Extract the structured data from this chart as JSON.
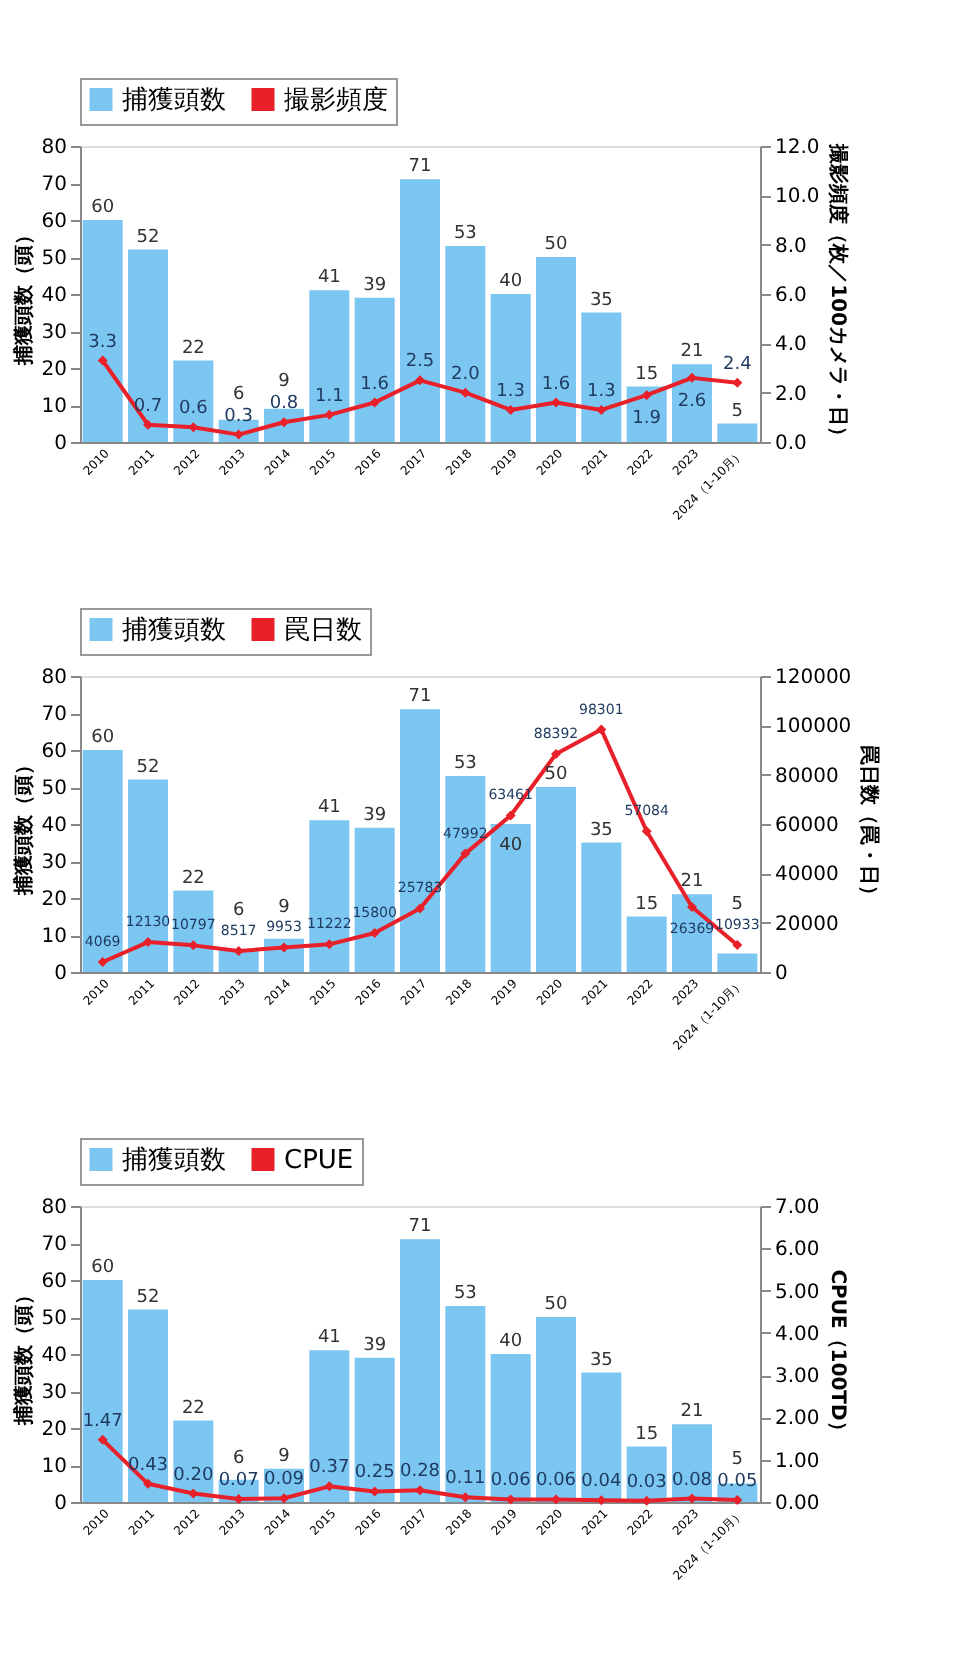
{
  "chart_data": [
    {
      "type": "bar",
      "categories": [
        "2010",
        "2011",
        "2012",
        "2013",
        "2014",
        "2015",
        "2016",
        "2017",
        "2018",
        "2019",
        "2020",
        "2021",
        "2022",
        "2023",
        "2024（1-10月）"
      ],
      "ylabel": "捕獲頭数（頭）",
      "y2label": "撮影頻度（枚／100カメラ・日）",
      "ylim": [
        0,
        80
      ],
      "yticks": [
        0,
        10,
        20,
        30,
        40,
        50,
        60,
        70,
        80
      ],
      "y2lim": [
        0,
        12
      ],
      "y2ticks": [
        {
          "value": 0,
          "label": "0.0"
        },
        {
          "value": 2,
          "label": "2.0"
        },
        {
          "value": 4,
          "label": "4.0"
        },
        {
          "value": 6,
          "label": "6.0"
        },
        {
          "value": 8,
          "label": "8.0"
        },
        {
          "value": 10,
          "label": "10.0"
        },
        {
          "value": 12,
          "label": "12.0"
        }
      ],
      "legend": "top left",
      "grid": false,
      "data_labels": true,
      "series": [
        {
          "name": "捕獲頭数",
          "color": "#7cc6f2",
          "values": [
            60,
            52,
            22,
            6,
            9,
            41,
            39,
            71,
            53,
            40,
            50,
            35,
            15,
            21,
            5
          ]
        },
        {
          "name": "撮影頻度",
          "type": "line",
          "axis": "y2",
          "color": "#e8202a",
          "marker": "diamond",
          "values": [
            3.3,
            0.7,
            0.6,
            0.3,
            0.8,
            1.1,
            1.6,
            2.5,
            2.0,
            1.3,
            1.6,
            1.3,
            1.9,
            2.6,
            2.4
          ],
          "value_labels": [
            "3.3",
            "0.7",
            "0.6",
            "0.3",
            "0.8",
            "1.1",
            "1.6",
            "2.5",
            "2.0",
            "1.3",
            "1.6",
            "1.3",
            "1.9",
            "2.6",
            "2.4"
          ]
        }
      ]
    },
    {
      "type": "bar",
      "categories": [
        "2010",
        "2011",
        "2012",
        "2013",
        "2014",
        "2015",
        "2016",
        "2017",
        "2018",
        "2019",
        "2020",
        "2021",
        "2022",
        "2023",
        "2024（1-10月）"
      ],
      "ylabel": "捕獲頭数（頭）",
      "y2label": "罠日数（罠・日）",
      "ylim": [
        0,
        80
      ],
      "yticks": [
        0,
        10,
        20,
        30,
        40,
        50,
        60,
        70,
        80
      ],
      "y2lim": [
        0,
        120000
      ],
      "y2ticks": [
        0,
        20000,
        40000,
        60000,
        80000,
        100000,
        120000
      ],
      "legend": "top left",
      "grid": false,
      "data_labels": true,
      "series": [
        {
          "name": "捕獲頭数",
          "color": "#7cc6f2",
          "values": [
            60,
            52,
            22,
            6,
            9,
            41,
            39,
            71,
            53,
            40,
            50,
            35,
            15,
            21,
            5
          ]
        },
        {
          "name": "罠日数",
          "type": "line",
          "axis": "y2",
          "color": "#e8202a",
          "marker": "diamond",
          "values": [
            4069,
            12130,
            10797,
            8517,
            9953,
            11222,
            15800,
            25783,
            47992,
            63461,
            88392,
            98301,
            57084,
            26369,
            10933
          ],
          "value_labels": [
            "4069",
            "12130",
            "10797",
            "8517",
            "9953",
            "11222",
            "15800",
            "25783",
            "47992",
            "63461",
            "88392",
            "98301",
            "57084",
            "26369",
            "10933"
          ]
        }
      ]
    },
    {
      "type": "bar",
      "categories": [
        "2010",
        "2011",
        "2012",
        "2013",
        "2014",
        "2015",
        "2016",
        "2017",
        "2018",
        "2019",
        "2020",
        "2021",
        "2022",
        "2023",
        "2024（1-10月）"
      ],
      "ylabel": "捕獲頭数（頭）",
      "y2label": "CPUE（100TD）",
      "ylim": [
        0,
        80
      ],
      "yticks": [
        0,
        10,
        20,
        30,
        40,
        50,
        60,
        70,
        80
      ],
      "y2lim": [
        0,
        7
      ],
      "y2ticks": [
        {
          "value": 0,
          "label": "0.00"
        },
        {
          "value": 1,
          "label": "1.00"
        },
        {
          "value": 2,
          "label": "2.00"
        },
        {
          "value": 3,
          "label": "3.00"
        },
        {
          "value": 4,
          "label": "4.00"
        },
        {
          "value": 5,
          "label": "5.00"
        },
        {
          "value": 6,
          "label": "6.00"
        },
        {
          "value": 7,
          "label": "7.00"
        }
      ],
      "legend": "top left",
      "grid": false,
      "data_labels": true,
      "series": [
        {
          "name": "捕獲頭数",
          "color": "#7cc6f2",
          "values": [
            60,
            52,
            22,
            6,
            9,
            41,
            39,
            71,
            53,
            40,
            50,
            35,
            15,
            21,
            5
          ]
        },
        {
          "name": "CPUE",
          "type": "line",
          "axis": "y2",
          "color": "#e8202a",
          "marker": "diamond",
          "values": [
            1.47,
            0.43,
            0.2,
            0.07,
            0.09,
            0.37,
            0.25,
            0.28,
            0.11,
            0.06,
            0.06,
            0.04,
            0.03,
            0.08,
            0.05
          ],
          "value_labels": [
            "1.47",
            "0.43",
            "0.20",
            "0.07",
            "0.09",
            "0.37",
            "0.25",
            "0.28",
            "0.11",
            "0.06",
            "0.06",
            "0.04",
            "0.03",
            "0.08",
            "0.05"
          ]
        }
      ]
    }
  ]
}
